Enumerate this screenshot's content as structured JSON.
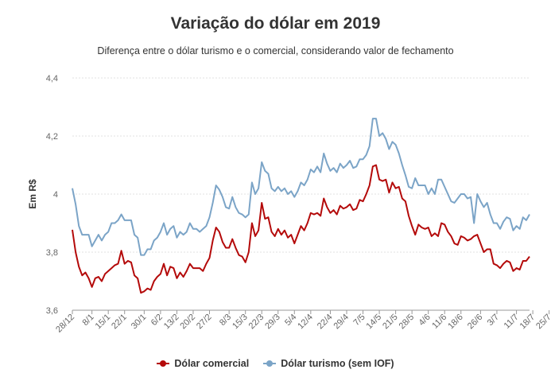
{
  "chart_data": {
    "type": "line",
    "title": "Variação do dólar em 2019",
    "subtitle": "Diferença entre o dólar turismo e o comercial, considerando valor de fechamento",
    "ylabel": "Em R$",
    "ylim": [
      3.6,
      4.4
    ],
    "yticks": [
      "3,6",
      "3,8",
      "4",
      "4,2",
      "4,4"
    ],
    "ytick_values": [
      3.6,
      3.8,
      4.0,
      4.2,
      4.4
    ],
    "grid": true,
    "legend_position": "bottom-center",
    "xtick_labels": [
      "28/12",
      "8/1",
      "15/1",
      "22/1",
      "30/1",
      "6/2",
      "13/2",
      "20/2",
      "27/2",
      "8/3",
      "15/3",
      "22/3",
      "29/3",
      "5/4",
      "12/4",
      "22/4",
      "29/4",
      "7/5",
      "14/5",
      "21/5",
      "28/5",
      "4/6",
      "11/6",
      "18/6",
      "26/6",
      "3/7",
      "11/7",
      "18/7",
      "25/7"
    ],
    "xtick_index": [
      0,
      6,
      11,
      16,
      22,
      27,
      32,
      37,
      42,
      48,
      53,
      58,
      63,
      68,
      73,
      79,
      84,
      89,
      94,
      99,
      104,
      109,
      114,
      119,
      125,
      130,
      136,
      141,
      146
    ],
    "series": [
      {
        "name": "Dólar comercial",
        "color": "#b40a0a",
        "values": [
          3.877,
          3.8,
          3.75,
          3.72,
          3.73,
          3.71,
          3.68,
          3.71,
          3.715,
          3.7,
          3.725,
          3.735,
          3.745,
          3.755,
          3.76,
          3.805,
          3.76,
          3.77,
          3.765,
          3.72,
          3.71,
          3.66,
          3.665,
          3.675,
          3.67,
          3.7,
          3.715,
          3.725,
          3.76,
          3.72,
          3.75,
          3.745,
          3.71,
          3.73,
          3.715,
          3.735,
          3.76,
          3.745,
          3.745,
          3.745,
          3.735,
          3.76,
          3.78,
          3.84,
          3.885,
          3.87,
          3.835,
          3.815,
          3.815,
          3.845,
          3.815,
          3.79,
          3.785,
          3.765,
          3.8,
          3.9,
          3.855,
          3.875,
          3.97,
          3.915,
          3.92,
          3.87,
          3.855,
          3.88,
          3.86,
          3.875,
          3.85,
          3.86,
          3.83,
          3.86,
          3.89,
          3.875,
          3.9,
          3.935,
          3.93,
          3.935,
          3.925,
          3.985,
          3.955,
          3.935,
          3.945,
          3.93,
          3.96,
          3.95,
          3.955,
          3.965,
          3.945,
          3.95,
          3.98,
          3.975,
          4.0,
          4.03,
          4.095,
          4.1,
          4.05,
          4.045,
          4.05,
          4.005,
          4.04,
          4.02,
          4.025,
          3.985,
          3.975,
          3.925,
          3.89,
          3.86,
          3.895,
          3.885,
          3.88,
          3.885,
          3.855,
          3.865,
          3.855,
          3.9,
          3.895,
          3.87,
          3.855,
          3.83,
          3.825,
          3.855,
          3.85,
          3.84,
          3.845,
          3.855,
          3.86,
          3.83,
          3.8,
          3.81,
          3.81,
          3.76,
          3.755,
          3.745,
          3.76,
          3.77,
          3.765,
          3.735,
          3.745,
          3.74,
          3.77,
          3.77,
          3.785
        ]
      },
      {
        "name": "Dólar turismo (sem IOF)",
        "color": "#7ba4c7",
        "values": [
          4.02,
          3.965,
          3.89,
          3.86,
          3.86,
          3.86,
          3.82,
          3.84,
          3.86,
          3.84,
          3.86,
          3.87,
          3.9,
          3.9,
          3.91,
          3.93,
          3.91,
          3.91,
          3.91,
          3.86,
          3.85,
          3.79,
          3.79,
          3.81,
          3.81,
          3.84,
          3.85,
          3.87,
          3.9,
          3.86,
          3.88,
          3.89,
          3.85,
          3.87,
          3.86,
          3.87,
          3.9,
          3.88,
          3.88,
          3.87,
          3.88,
          3.89,
          3.92,
          3.97,
          4.03,
          4.015,
          3.99,
          3.955,
          3.95,
          3.99,
          3.955,
          3.935,
          3.93,
          3.92,
          3.93,
          4.04,
          4.0,
          4.02,
          4.11,
          4.08,
          4.07,
          4.02,
          4.01,
          4.025,
          4.01,
          4.02,
          4.0,
          4.01,
          3.99,
          4.01,
          4.04,
          4.03,
          4.05,
          4.085,
          4.075,
          4.095,
          4.075,
          4.14,
          4.105,
          4.08,
          4.09,
          4.075,
          4.105,
          4.09,
          4.1,
          4.115,
          4.09,
          4.095,
          4.12,
          4.12,
          4.135,
          4.165,
          4.26,
          4.26,
          4.2,
          4.21,
          4.19,
          4.155,
          4.18,
          4.17,
          4.14,
          4.1,
          4.065,
          4.025,
          4.02,
          4.055,
          4.03,
          4.03,
          4.03,
          4.0,
          4.02,
          4.0,
          4.05,
          4.05,
          4.025,
          4.0,
          3.975,
          3.97,
          3.985,
          4.0,
          4.0,
          3.985,
          3.99,
          3.9,
          4.0,
          3.975,
          3.955,
          3.97,
          3.93,
          3.9,
          3.9,
          3.88,
          3.905,
          3.92,
          3.915,
          3.875,
          3.89,
          3.88,
          3.92,
          3.91,
          3.93
        ]
      }
    ]
  }
}
